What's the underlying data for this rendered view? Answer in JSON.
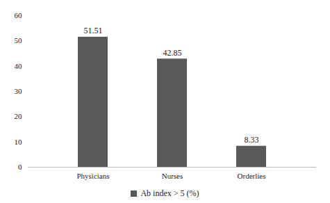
{
  "chart_data": {
    "type": "bar",
    "categories": [
      "Physicians",
      "Nurses",
      "Orderlies"
    ],
    "series": [
      {
        "name": "Ab index > 5 (%)",
        "color": "#595959",
        "values": [
          51.51,
          42.85,
          8.33
        ]
      }
    ],
    "ylim": [
      0,
      60
    ],
    "yticks": [
      0,
      10,
      20,
      30,
      40,
      50,
      60
    ],
    "grid": false,
    "data_labels": true,
    "legend": "bottom"
  }
}
